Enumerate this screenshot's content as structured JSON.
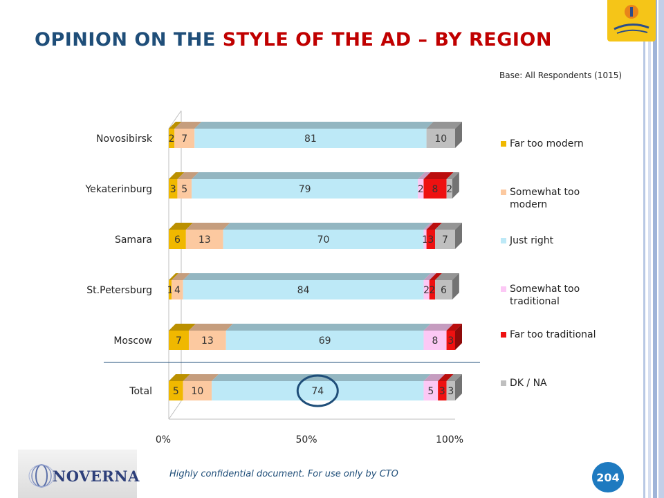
{
  "slide": {
    "title_parts": [
      "O",
      "PINION ON THE ",
      "S",
      "TYLE OF THE AD",
      " – BY REGION"
    ],
    "base_note": "Base: All Respondents (1015)",
    "footer_note": "Highly confidential document. For use only by CTO",
    "page_number": "204",
    "company_logo_text": "NOVERNA",
    "brand_logo": "cyprus-in-your-heart-logo"
  },
  "colors": {
    "title": "#1f4e79",
    "title_accent": "#c00000",
    "page_badge": "#1e7ac0",
    "series": [
      "#f0b800",
      "#fcc9a0",
      "#bde9f7",
      "#fcc8f5",
      "#ee1111",
      "#bfbfbf"
    ]
  },
  "chart_data": {
    "type": "bar",
    "orientation": "horizontal",
    "stacked": "percent",
    "categories": [
      "Novosibirsk",
      "Yekaterinburg",
      "Samara",
      "St.Petersburg",
      "Moscow",
      "Total"
    ],
    "series": [
      {
        "name": "Far too modern",
        "values": [
          2,
          3,
          6,
          1,
          7,
          5
        ]
      },
      {
        "name": "Somewhat too modern",
        "values": [
          7,
          5,
          13,
          4,
          13,
          10
        ]
      },
      {
        "name": "Just right",
        "values": [
          81,
          79,
          70,
          84,
          69,
          74
        ]
      },
      {
        "name": "Somewhat too traditional",
        "values": [
          0,
          2,
          1,
          2,
          8,
          5
        ]
      },
      {
        "name": "Far too traditional",
        "values": [
          0,
          8,
          3,
          2,
          3,
          3
        ]
      },
      {
        "name": "DK / NA",
        "values": [
          10,
          2,
          7,
          6,
          0,
          3
        ]
      }
    ],
    "xticks": [
      "0%",
      "50%",
      "100%"
    ],
    "xlim": [
      0,
      100
    ],
    "legend_position": "right",
    "highlight": {
      "category": "Total",
      "series": "Just right",
      "value": 74
    }
  }
}
